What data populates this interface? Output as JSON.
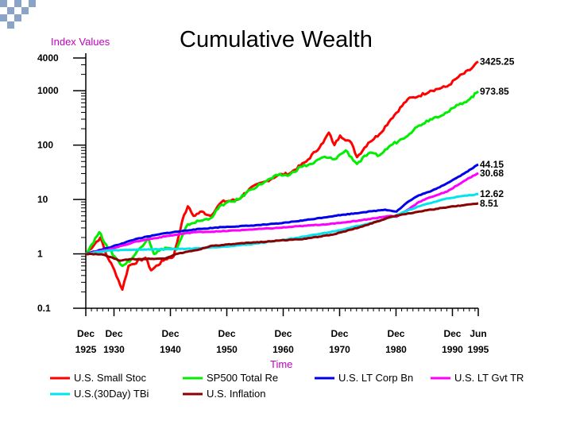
{
  "chart_data": {
    "type": "line",
    "title": "Cumulative Wealth",
    "ylabel": "Index Values",
    "xlabel": "Time",
    "yscale": "log",
    "ylim": [
      0.1,
      4000
    ],
    "yticks": [
      {
        "value": 4000,
        "label": "4000"
      },
      {
        "value": 1000,
        "label": "1000"
      },
      {
        "value": 100,
        "label": "100"
      },
      {
        "value": 10,
        "label": "10"
      },
      {
        "value": 1,
        "label": "1"
      },
      {
        "value": 0.1,
        "label": "0.1"
      }
    ],
    "xlim": [
      1925.92,
      1995.5
    ],
    "xticks": [
      {
        "value": 1925.92,
        "top": "Dec",
        "bottom": "1925"
      },
      {
        "value": 1930.92,
        "top": "Dec",
        "bottom": "1930"
      },
      {
        "value": 1940.92,
        "top": "Dec",
        "bottom": "1940"
      },
      {
        "value": 1950.92,
        "top": "Dec",
        "bottom": "1950"
      },
      {
        "value": 1960.92,
        "top": "Dec",
        "bottom": "1960"
      },
      {
        "value": 1970.92,
        "top": "Dec",
        "bottom": "1970"
      },
      {
        "value": 1980.92,
        "top": "Dec",
        "bottom": "1980"
      },
      {
        "value": 1990.92,
        "top": "Dec",
        "bottom": "1990"
      },
      {
        "value": 1995.5,
        "top": "Jun",
        "bottom": "1995"
      }
    ],
    "series": [
      {
        "name": "U.S. Small Stoc",
        "color": "#ff0000",
        "end_label": "3425.25",
        "points": [
          [
            1925.92,
            1
          ],
          [
            1928.5,
            2.0
          ],
          [
            1929.5,
            1.0
          ],
          [
            1931,
            0.5
          ],
          [
            1932.4,
            0.22
          ],
          [
            1933.5,
            0.6
          ],
          [
            1936.5,
            0.85
          ],
          [
            1937.5,
            0.5
          ],
          [
            1940,
            0.8
          ],
          [
            1941.5,
            0.9
          ],
          [
            1943,
            4.0
          ],
          [
            1944,
            7.5
          ],
          [
            1945,
            5.0
          ],
          [
            1946.5,
            6.0
          ],
          [
            1948,
            5.0
          ],
          [
            1950,
            9.0
          ],
          [
            1953,
            10
          ],
          [
            1955,
            16
          ],
          [
            1958,
            22
          ],
          [
            1960,
            28
          ],
          [
            1962,
            30
          ],
          [
            1965,
            50
          ],
          [
            1968,
            110
          ],
          [
            1969,
            170
          ],
          [
            1970,
            100
          ],
          [
            1971,
            150
          ],
          [
            1973,
            110
          ],
          [
            1974,
            60
          ],
          [
            1976,
            110
          ],
          [
            1978,
            160
          ],
          [
            1980,
            300
          ],
          [
            1983,
            700
          ],
          [
            1985,
            800
          ],
          [
            1987,
            1000
          ],
          [
            1990,
            1200
          ],
          [
            1992,
            1800
          ],
          [
            1994,
            2400
          ],
          [
            1995.5,
            3425.25
          ]
        ]
      },
      {
        "name": "SP500 Total Re",
        "color": "#00ee00",
        "end_label": "973.85",
        "points": [
          [
            1925.92,
            1
          ],
          [
            1928.3,
            2.5
          ],
          [
            1929.5,
            1.5
          ],
          [
            1931,
            0.9
          ],
          [
            1932.4,
            0.6
          ],
          [
            1934,
            0.8
          ],
          [
            1937,
            2.0
          ],
          [
            1938,
            1.0
          ],
          [
            1940,
            1.3
          ],
          [
            1942,
            1.2
          ],
          [
            1944,
            3.5
          ],
          [
            1946,
            4.0
          ],
          [
            1948,
            4.5
          ],
          [
            1950,
            8
          ],
          [
            1953,
            10
          ],
          [
            1955,
            15
          ],
          [
            1958,
            22
          ],
          [
            1960,
            28
          ],
          [
            1962,
            28
          ],
          [
            1964,
            40
          ],
          [
            1966,
            45
          ],
          [
            1968,
            60
          ],
          [
            1970,
            55
          ],
          [
            1972,
            80
          ],
          [
            1974,
            45
          ],
          [
            1976,
            70
          ],
          [
            1978,
            65
          ],
          [
            1980,
            100
          ],
          [
            1982,
            130
          ],
          [
            1985,
            230
          ],
          [
            1987,
            300
          ],
          [
            1990,
            400
          ],
          [
            1992,
            550
          ],
          [
            1994,
            700
          ],
          [
            1995.5,
            973.85
          ]
        ]
      },
      {
        "name": "U.S. LT Corp Bn",
        "color": "#0000ee",
        "end_label": "44.15",
        "points": [
          [
            1925.92,
            1
          ],
          [
            1930,
            1.3
          ],
          [
            1935,
            1.9
          ],
          [
            1940,
            2.4
          ],
          [
            1945,
            2.8
          ],
          [
            1950,
            3.1
          ],
          [
            1955,
            3.3
          ],
          [
            1960,
            3.6
          ],
          [
            1965,
            4.2
          ],
          [
            1970,
            5.0
          ],
          [
            1975,
            5.8
          ],
          [
            1979,
            6.5
          ],
          [
            1981,
            6.0
          ],
          [
            1983,
            9
          ],
          [
            1985,
            12
          ],
          [
            1987,
            14
          ],
          [
            1990,
            20
          ],
          [
            1993,
            30
          ],
          [
            1995.5,
            44.15
          ]
        ]
      },
      {
        "name": "U.S. LT Gvt TR",
        "color": "#ff00ff",
        "end_label": "30.68",
        "points": [
          [
            1925.92,
            1
          ],
          [
            1930,
            1.2
          ],
          [
            1935,
            1.7
          ],
          [
            1940,
            2.1
          ],
          [
            1945,
            2.5
          ],
          [
            1950,
            2.6
          ],
          [
            1955,
            2.8
          ],
          [
            1960,
            3.0
          ],
          [
            1965,
            3.3
          ],
          [
            1970,
            3.6
          ],
          [
            1975,
            4.2
          ],
          [
            1980,
            5.0
          ],
          [
            1981,
            4.8
          ],
          [
            1983,
            6.5
          ],
          [
            1985,
            9
          ],
          [
            1987,
            11
          ],
          [
            1990,
            14
          ],
          [
            1993,
            22
          ],
          [
            1995.5,
            30.68
          ]
        ]
      },
      {
        "name": "U.S.(30Day) TBi",
        "color": "#00e5ee",
        "end_label": "12.62",
        "points": [
          [
            1925.92,
            1
          ],
          [
            1930,
            1.15
          ],
          [
            1935,
            1.2
          ],
          [
            1940,
            1.22
          ],
          [
            1945,
            1.25
          ],
          [
            1950,
            1.35
          ],
          [
            1955,
            1.5
          ],
          [
            1960,
            1.75
          ],
          [
            1965,
            2.1
          ],
          [
            1970,
            2.6
          ],
          [
            1975,
            3.4
          ],
          [
            1980,
            4.7
          ],
          [
            1985,
            7.5
          ],
          [
            1990,
            10.5
          ],
          [
            1995.5,
            12.62
          ]
        ]
      },
      {
        "name": "U.S. Inflation",
        "color": "#8b0000",
        "end_label": "8.51",
        "points": [
          [
            1925.92,
            1
          ],
          [
            1929,
            0.97
          ],
          [
            1932,
            0.75
          ],
          [
            1934,
            0.8
          ],
          [
            1940,
            0.82
          ],
          [
            1942,
            1.0
          ],
          [
            1946,
            1.2
          ],
          [
            1948,
            1.4
          ],
          [
            1950,
            1.45
          ],
          [
            1955,
            1.6
          ],
          [
            1960,
            1.75
          ],
          [
            1965,
            1.9
          ],
          [
            1970,
            2.3
          ],
          [
            1975,
            3.2
          ],
          [
            1980,
            4.8
          ],
          [
            1985,
            6.0
          ],
          [
            1990,
            7.2
          ],
          [
            1995.5,
            8.51
          ]
        ]
      }
    ]
  },
  "decor": {
    "accent": "#8aa4c8"
  }
}
